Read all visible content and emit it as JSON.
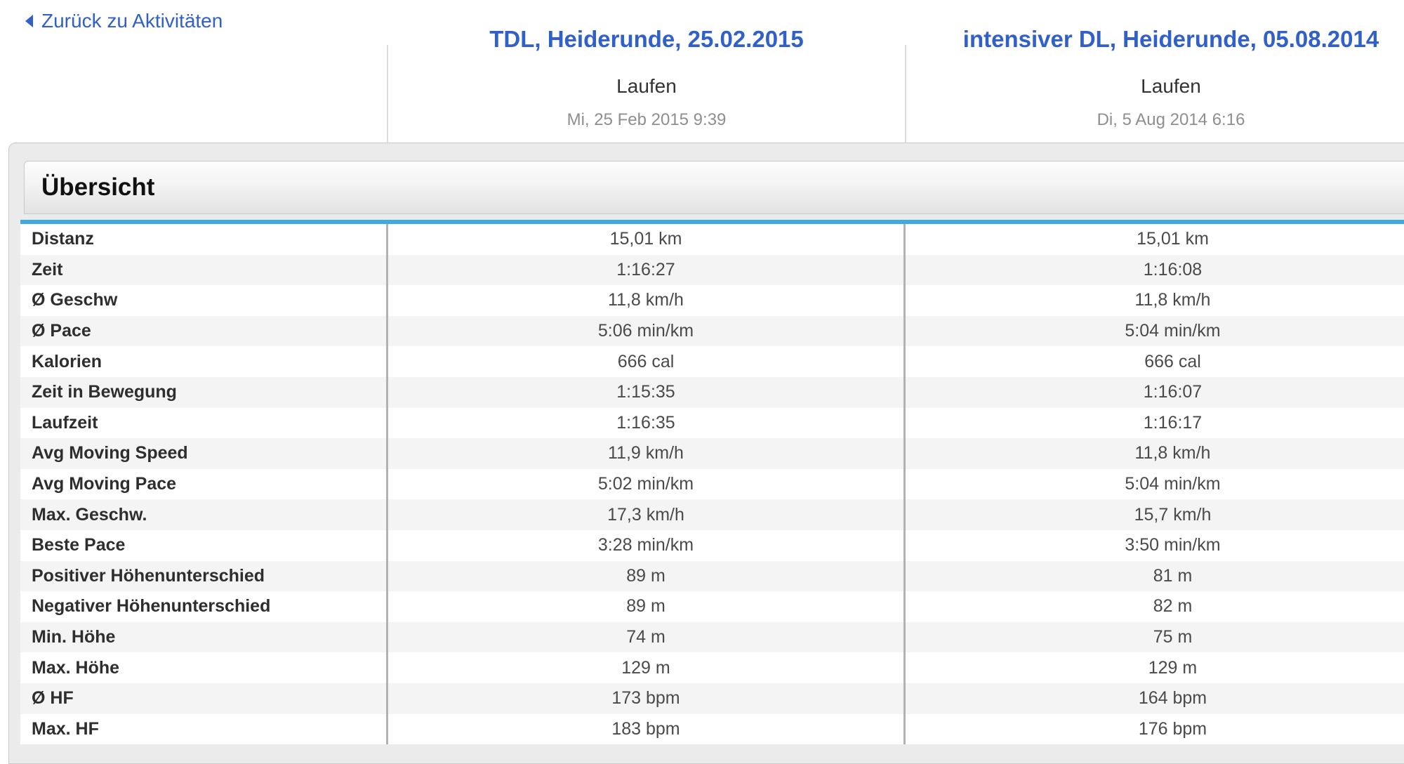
{
  "back_link": {
    "label": "Zurück zu Aktivitäten",
    "icon": "left-triangle-arrow"
  },
  "activities": [
    {
      "title": "TDL, Heiderunde, 25.02.2015",
      "sport": "Laufen",
      "datetime": "Mi, 25 Feb 2015 9:39"
    },
    {
      "title": "intensiver DL, Heiderunde, 05.08.2014",
      "sport": "Laufen",
      "datetime": "Di, 5 Aug 2014 6:16"
    }
  ],
  "overview": {
    "title": "Übersicht",
    "rows": [
      {
        "label": "Distanz",
        "values": [
          "15,01 km",
          "15,01 km"
        ]
      },
      {
        "label": "Zeit",
        "values": [
          "1:16:27",
          "1:16:08"
        ]
      },
      {
        "label": "Ø Geschw",
        "values": [
          "11,8 km/h",
          "11,8 km/h"
        ]
      },
      {
        "label": "Ø Pace",
        "values": [
          "5:06 min/km",
          "5:04 min/km"
        ]
      },
      {
        "label": "Kalorien",
        "values": [
          "666 cal",
          "666 cal"
        ]
      },
      {
        "label": "Zeit in Bewegung",
        "values": [
          "1:15:35",
          "1:16:07"
        ]
      },
      {
        "label": "Laufzeit",
        "values": [
          "1:16:35",
          "1:16:17"
        ]
      },
      {
        "label": "Avg Moving Speed",
        "values": [
          "11,9 km/h",
          "11,8 km/h"
        ]
      },
      {
        "label": "Avg Moving Pace",
        "values": [
          "5:02 min/km",
          "5:04 min/km"
        ]
      },
      {
        "label": "Max. Geschw.",
        "values": [
          "17,3 km/h",
          "15,7 km/h"
        ]
      },
      {
        "label": "Beste Pace",
        "values": [
          "3:28 min/km",
          "3:50 min/km"
        ]
      },
      {
        "label": "Positiver Höhenunterschied",
        "values": [
          "89 m",
          "81 m"
        ]
      },
      {
        "label": "Negativer Höhenunterschied",
        "values": [
          "89 m",
          "82 m"
        ]
      },
      {
        "label": "Min. Höhe",
        "values": [
          "74 m",
          "75 m"
        ]
      },
      {
        "label": "Max. Höhe",
        "values": [
          "129 m",
          "129 m"
        ]
      },
      {
        "label": "Ø HF",
        "values": [
          "173 bpm",
          "164 bpm"
        ]
      },
      {
        "label": "Max. HF",
        "values": [
          "183 bpm",
          "176 bpm"
        ]
      }
    ]
  },
  "colors": {
    "link_blue": "#3060c8",
    "accent_blue": "#3fa9e1"
  }
}
